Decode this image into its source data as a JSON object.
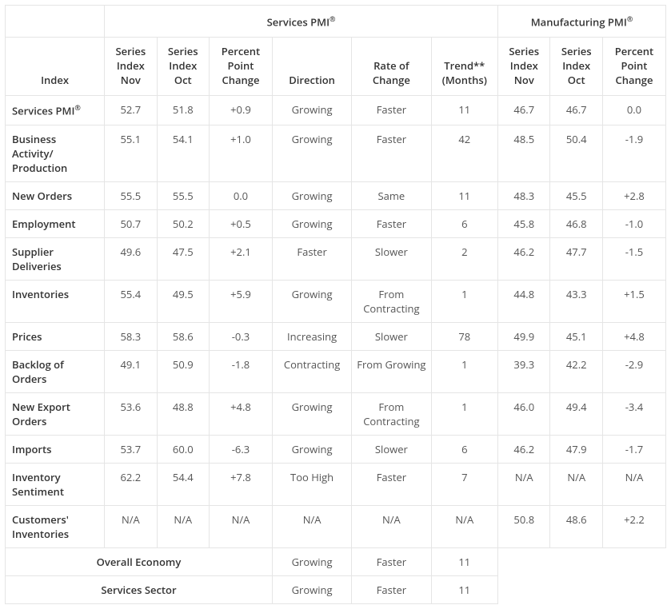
{
  "groups": {
    "services": "Services PMI",
    "manufacturing": "Manufacturing PMI",
    "regmark": "®"
  },
  "columns": {
    "index": "Index",
    "s_nov": "Series Index Nov",
    "s_oct": "Series Index Oct",
    "s_chg": "Percent Point Change",
    "direction": "Direction",
    "rate": "Rate of Change",
    "trend": "Trend** (Months)",
    "m_nov": "Series Index Nov",
    "m_oct": "Series Index Oct",
    "m_chg": "Percent Point Change"
  },
  "rows": [
    {
      "label": "Services PMI",
      "reg": true,
      "s_nov": "52.7",
      "s_oct": "51.8",
      "s_chg": "+0.9",
      "dir": "Growing",
      "rate": "Faster",
      "trend": "11",
      "m_nov": "46.7",
      "m_oct": "46.7",
      "m_chg": "0.0"
    },
    {
      "label": "Business Activity/ Production",
      "s_nov": "55.1",
      "s_oct": "54.1",
      "s_chg": "+1.0",
      "dir": "Growing",
      "rate": "Faster",
      "trend": "42",
      "m_nov": "48.5",
      "m_oct": "50.4",
      "m_chg": "-1.9"
    },
    {
      "label": "New Orders",
      "s_nov": "55.5",
      "s_oct": "55.5",
      "s_chg": "0.0",
      "dir": "Growing",
      "rate": "Same",
      "trend": "11",
      "m_nov": "48.3",
      "m_oct": "45.5",
      "m_chg": "+2.8"
    },
    {
      "label": "Employment",
      "s_nov": "50.7",
      "s_oct": "50.2",
      "s_chg": "+0.5",
      "dir": "Growing",
      "rate": "Faster",
      "trend": "6",
      "m_nov": "45.8",
      "m_oct": "46.8",
      "m_chg": "-1.0"
    },
    {
      "label": "Supplier Deliveries",
      "s_nov": "49.6",
      "s_oct": "47.5",
      "s_chg": "+2.1",
      "dir": "Faster",
      "rate": "Slower",
      "trend": "2",
      "m_nov": "46.2",
      "m_oct": "47.7",
      "m_chg": "-1.5"
    },
    {
      "label": "Inventories",
      "s_nov": "55.4",
      "s_oct": "49.5",
      "s_chg": "+5.9",
      "dir": "Growing",
      "rate": "From Contracting",
      "trend": "1",
      "m_nov": "44.8",
      "m_oct": "43.3",
      "m_chg": "+1.5"
    },
    {
      "label": "Prices",
      "s_nov": "58.3",
      "s_oct": "58.6",
      "s_chg": "-0.3",
      "dir": "Increasing",
      "rate": "Slower",
      "trend": "78",
      "m_nov": "49.9",
      "m_oct": "45.1",
      "m_chg": "+4.8"
    },
    {
      "label": "Backlog of Orders",
      "s_nov": "49.1",
      "s_oct": "50.9",
      "s_chg": "-1.8",
      "dir": "Contracting",
      "rate": "From Growing",
      "trend": "1",
      "m_nov": "39.3",
      "m_oct": "42.2",
      "m_chg": "-2.9"
    },
    {
      "label": "New Export Orders",
      "s_nov": "53.6",
      "s_oct": "48.8",
      "s_chg": "+4.8",
      "dir": "Growing",
      "rate": "From Contracting",
      "trend": "1",
      "m_nov": "46.0",
      "m_oct": "49.4",
      "m_chg": "-3.4"
    },
    {
      "label": "Imports",
      "s_nov": "53.7",
      "s_oct": "60.0",
      "s_chg": "-6.3",
      "dir": "Growing",
      "rate": "Slower",
      "trend": "6",
      "m_nov": "46.2",
      "m_oct": "47.9",
      "m_chg": "-1.7"
    },
    {
      "label": "Inventory Sentiment",
      "s_nov": "62.2",
      "s_oct": "54.4",
      "s_chg": "+7.8",
      "dir": "Too High",
      "rate": "Faster",
      "trend": "7",
      "m_nov": "N/A",
      "m_oct": "N/A",
      "m_chg": "N/A"
    },
    {
      "label": "Customers' Inventories",
      "s_nov": "N/A",
      "s_oct": "N/A",
      "s_chg": "N/A",
      "dir": "N/A",
      "rate": "N/A",
      "trend": "N/A",
      "m_nov": "50.8",
      "m_oct": "48.6",
      "m_chg": "+2.2"
    }
  ],
  "footer": [
    {
      "label": "Overall Economy",
      "dir": "Growing",
      "rate": "Faster",
      "trend": "11"
    },
    {
      "label": "Services Sector",
      "dir": "Growing",
      "rate": "Faster",
      "trend": "11"
    }
  ],
  "style": {
    "text_color": "#333333",
    "data_color": "#555555",
    "border_color": "#e5e5e5",
    "background": "#ffffff",
    "font_family": "Segoe UI, Open Sans, Arial, sans-serif",
    "base_fontsize": 13,
    "header_fontweight": 600
  }
}
